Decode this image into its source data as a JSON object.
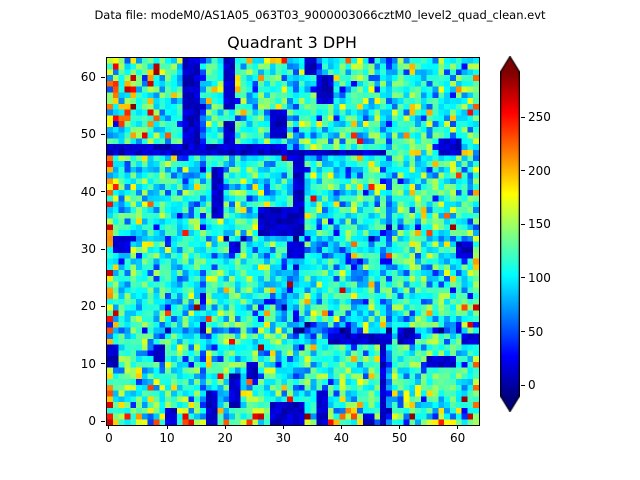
{
  "figure": {
    "suptitle": "Data file: modeM0/AS1A05_063T03_9000003066cztM0_level2_quad_clean.evt",
    "background": "#ffffff",
    "text_color": "#000000"
  },
  "chart_data": {
    "type": "heatmap",
    "title": "Quadrant 3 DPH",
    "xlabel": "",
    "ylabel": "",
    "grid_size": [
      64,
      64
    ],
    "x_range": [
      -0.5,
      63.5
    ],
    "y_range": [
      -0.5,
      63.5
    ],
    "x_ticks": [
      0,
      10,
      20,
      30,
      40,
      50,
      60
    ],
    "y_ticks": [
      0,
      10,
      20,
      30,
      40,
      50,
      60
    ],
    "colormap": "jet",
    "colorbar": {
      "vmin": -10,
      "vmax": 292,
      "ticks": [
        0,
        50,
        100,
        150,
        200,
        250
      ],
      "extend": "both",
      "top_color": "#7f0000",
      "bottom_color": "#00007f"
    },
    "value_model": {
      "seed": 20240907,
      "base": 112,
      "sigma": 26,
      "low_max": 24,
      "speckle": {
        "hot1_p": 0.05,
        "hot1": [
          150,
          205
        ],
        "hot2_p": 0.012,
        "hot2": [
          205,
          292
        ],
        "cold_p": 0.05,
        "cold": [
          25,
          70
        ]
      },
      "seams": {
        "cols": [
          16,
          32,
          48
        ],
        "rows": [
          16,
          32
        ],
        "depth": 38
      },
      "ring": {
        "cx": 36.5,
        "cy": 23,
        "r": 7,
        "w": 1.4,
        "delta": -48
      },
      "low_regions": [
        [
          13,
          15,
          48,
          63
        ],
        [
          20,
          21,
          55,
          63
        ],
        [
          20,
          21,
          49,
          52
        ],
        [
          0,
          30,
          47,
          48
        ],
        [
          31,
          47,
          47,
          47
        ],
        [
          26,
          31,
          33,
          37
        ],
        [
          31,
          33,
          29,
          31
        ],
        [
          21,
          22,
          30,
          31
        ],
        [
          18,
          19,
          36,
          44
        ],
        [
          32,
          33,
          33,
          46
        ],
        [
          36,
          38,
          56,
          60
        ],
        [
          34,
          35,
          61,
          63
        ],
        [
          28,
          30,
          50,
          54
        ],
        [
          57,
          60,
          47,
          49
        ],
        [
          60,
          62,
          29,
          31
        ],
        [
          1,
          3,
          30,
          32
        ],
        [
          38,
          48,
          14,
          15
        ],
        [
          50,
          52,
          14,
          16
        ],
        [
          61,
          63,
          14,
          15
        ],
        [
          47,
          47,
          0,
          13
        ],
        [
          28,
          33,
          0,
          3
        ],
        [
          17,
          18,
          0,
          5
        ],
        [
          21,
          22,
          3,
          8
        ],
        [
          36,
          37,
          0,
          5
        ],
        [
          0,
          1,
          10,
          13
        ],
        [
          8,
          9,
          11,
          13
        ],
        [
          55,
          59,
          10,
          11
        ],
        [
          44,
          45,
          0,
          1
        ],
        [
          24,
          25,
          8,
          10
        ],
        [
          10,
          11,
          0,
          2
        ]
      ],
      "hot_regions": [
        {
          "x0": 2,
          "x1": 8,
          "y0": 49,
          "y1": 62,
          "p": 0.18,
          "lo": 190,
          "hi": 292
        },
        {
          "x0": 0,
          "x1": 0,
          "y0": 0,
          "y1": 63,
          "p": 0.5,
          "lo": 140,
          "hi": 270
        },
        {
          "x0": 1,
          "x1": 1,
          "y0": 48,
          "y1": 63,
          "p": 0.3,
          "lo": 150,
          "hi": 260
        },
        {
          "x0": 0,
          "x1": 63,
          "y0": 0,
          "y1": 1,
          "p": 0.32,
          "lo": 150,
          "hi": 292
        },
        {
          "x0": 0,
          "x1": 63,
          "y0": 2,
          "y1": 3,
          "p": 0.1,
          "lo": 140,
          "hi": 220
        },
        {
          "x0": 63,
          "x1": 63,
          "y0": 0,
          "y1": 63,
          "p": 0.22,
          "lo": 140,
          "hi": 230
        },
        {
          "x0": 0,
          "x1": 63,
          "y0": 62,
          "y1": 63,
          "p": 0.1,
          "lo": 140,
          "hi": 220
        }
      ]
    }
  }
}
